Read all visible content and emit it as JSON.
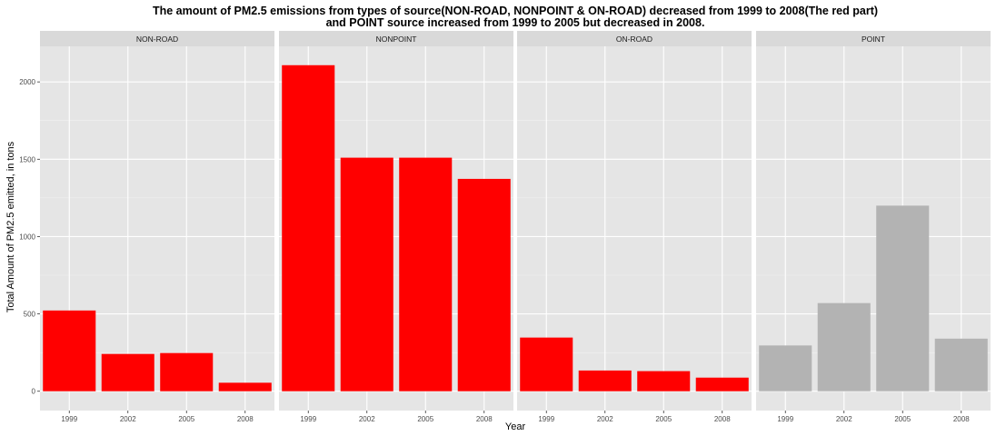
{
  "chart_data": {
    "type": "bar",
    "title_line1": "The amount of PM2.5 emissions from types of source(NON-ROAD, NONPOINT & ON-ROAD) decreased from 1999 to 2008(The red part)",
    "title_line2": "and POINT source increased from 1999 to 2005 but decreased in 2008.",
    "xlabel": "Year",
    "ylabel": "Total Amount of PM2.5 emitted, in tons",
    "categories": [
      "1999",
      "2002",
      "2005",
      "2008"
    ],
    "ylim": [
      -125,
      2230
    ],
    "yticks": [
      0,
      500,
      1000,
      1500,
      2000
    ],
    "grid": true,
    "facets": [
      {
        "name": "NON-ROAD",
        "color": "#ff0000",
        "values": [
          522,
          241,
          247,
          55
        ]
      },
      {
        "name": "NONPOINT",
        "color": "#ff0000",
        "values": [
          2108,
          1510,
          1510,
          1373
        ]
      },
      {
        "name": "ON-ROAD",
        "color": "#ff0000",
        "values": [
          347,
          134,
          130,
          88
        ]
      },
      {
        "name": "POINT",
        "color": "#b3b3b3",
        "values": [
          296,
          570,
          1200,
          340
        ]
      }
    ],
    "panel_background": "#e5e5e5",
    "strip_background": "#d9d9d9"
  }
}
